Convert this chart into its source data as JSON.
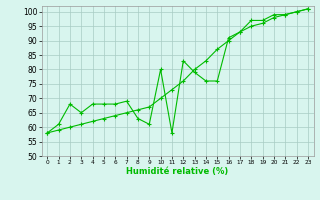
{
  "line1_y": [
    58,
    61,
    68,
    65,
    68,
    68,
    68,
    69,
    63,
    61,
    80,
    58,
    83,
    79,
    76,
    76,
    91,
    93,
    97,
    97,
    99,
    99,
    100,
    101
  ],
  "line2_y": [
    58,
    59,
    60,
    61,
    62,
    63,
    64,
    65,
    66,
    67,
    70,
    73,
    76,
    80,
    83,
    87,
    90,
    93,
    95,
    96,
    98,
    99,
    100,
    101
  ],
  "x": [
    0,
    1,
    2,
    3,
    4,
    5,
    6,
    7,
    8,
    9,
    10,
    11,
    12,
    13,
    14,
    15,
    16,
    17,
    18,
    19,
    20,
    21,
    22,
    23
  ],
  "line_color": "#00BB00",
  "background_color": "#D8F5EE",
  "grid_color": "#A8CCC4",
  "xlabel": "Humidité relative (%)",
  "ylim": [
    50,
    102
  ],
  "xlim": [
    -0.5,
    23.5
  ],
  "yticks": [
    50,
    55,
    60,
    65,
    70,
    75,
    80,
    85,
    90,
    95,
    100
  ],
  "xticks": [
    0,
    1,
    2,
    3,
    4,
    5,
    6,
    7,
    8,
    9,
    10,
    11,
    12,
    13,
    14,
    15,
    16,
    17,
    18,
    19,
    20,
    21,
    22,
    23
  ],
  "ytick_labels": [
    "50",
    "55",
    "60",
    "65",
    "70",
    "75",
    "80",
    "85",
    "90",
    "95",
    "100"
  ]
}
